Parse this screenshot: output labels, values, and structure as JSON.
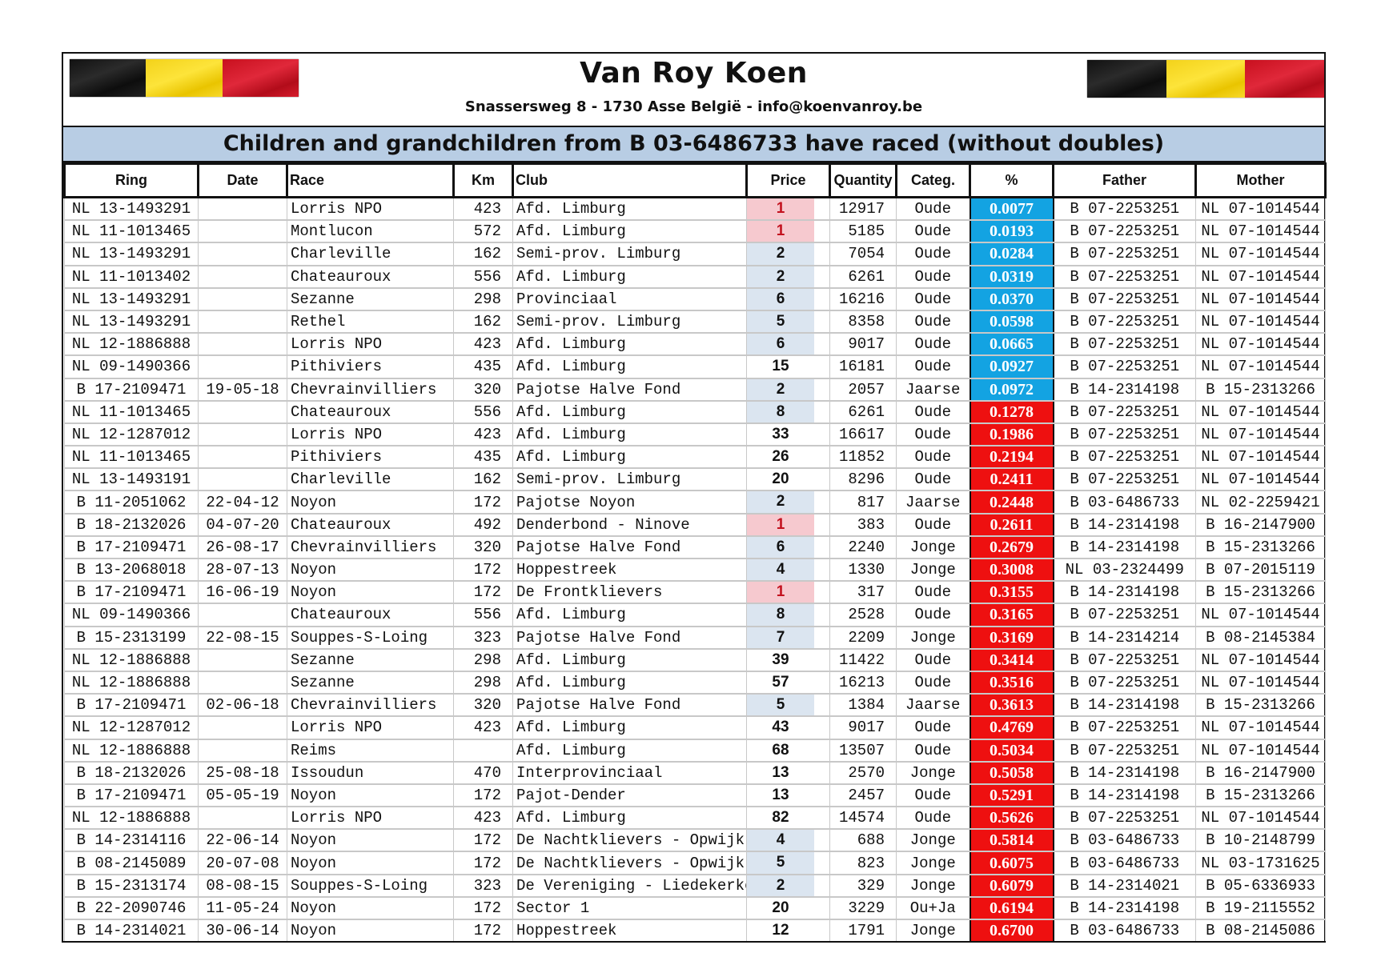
{
  "header": {
    "title": "Van Roy Koen",
    "subtitle": "Snassersweg 8 - 1730 Asse België - info@koenvanroy.be",
    "banner": "Children and grandchildren from B 03-6486733 have raced (without doubles)"
  },
  "colors": {
    "banner_bg": "#b8cde4",
    "pct_below_0_1": "#13a3e2",
    "pct_above_0_1": "#ee1010",
    "price_first": "#f6c9cf",
    "price_top": "#dbe5f0"
  },
  "columns": [
    "Ring",
    "Date",
    "Race",
    "Km",
    "Club",
    "Price",
    "Quantity",
    "Categ.",
    "%",
    "Father",
    "Mother"
  ],
  "rows": [
    [
      "NL 13-1493291",
      "",
      "Lorris NPO",
      "423",
      "Afd. Limburg",
      "1",
      "12917",
      "Oude",
      "0.0077",
      "B 07-2253251",
      "NL 07-1014544"
    ],
    [
      "NL 11-1013465",
      "",
      "Montlucon",
      "572",
      "Afd. Limburg",
      "1",
      "5185",
      "Oude",
      "0.0193",
      "B 07-2253251",
      "NL 07-1014544"
    ],
    [
      "NL 13-1493291",
      "",
      "Charleville",
      "162",
      "Semi-prov. Limburg",
      "2",
      "7054",
      "Oude",
      "0.0284",
      "B 07-2253251",
      "NL 07-1014544"
    ],
    [
      "NL 11-1013402",
      "",
      "Chateauroux",
      "556",
      "Afd. Limburg",
      "2",
      "6261",
      "Oude",
      "0.0319",
      "B 07-2253251",
      "NL 07-1014544"
    ],
    [
      "NL 13-1493291",
      "",
      "Sezanne",
      "298",
      "Provinciaal",
      "6",
      "16216",
      "Oude",
      "0.0370",
      "B 07-2253251",
      "NL 07-1014544"
    ],
    [
      "NL 13-1493291",
      "",
      "Rethel",
      "162",
      "Semi-prov. Limburg",
      "5",
      "8358",
      "Oude",
      "0.0598",
      "B 07-2253251",
      "NL 07-1014544"
    ],
    [
      "NL 12-1886888",
      "",
      "Lorris NPO",
      "423",
      "Afd. Limburg",
      "6",
      "9017",
      "Oude",
      "0.0665",
      "B 07-2253251",
      "NL 07-1014544"
    ],
    [
      "NL 09-1490366",
      "",
      "Pithiviers",
      "435",
      "Afd. Limburg",
      "15",
      "16181",
      "Oude",
      "0.0927",
      "B 07-2253251",
      "NL 07-1014544"
    ],
    [
      "B 17-2109471",
      "19-05-18",
      "Chevrainvilliers",
      "320",
      "Pajotse Halve Fond",
      "2",
      "2057",
      "Jaarse",
      "0.0972",
      "B 14-2314198",
      "B 15-2313266"
    ],
    [
      "NL 11-1013465",
      "",
      "Chateauroux",
      "556",
      "Afd. Limburg",
      "8",
      "6261",
      "Oude",
      "0.1278",
      "B 07-2253251",
      "NL 07-1014544"
    ],
    [
      "NL 12-1287012",
      "",
      "Lorris NPO",
      "423",
      "Afd. Limburg",
      "33",
      "16617",
      "Oude",
      "0.1986",
      "B 07-2253251",
      "NL 07-1014544"
    ],
    [
      "NL 11-1013465",
      "",
      "Pithiviers",
      "435",
      "Afd. Limburg",
      "26",
      "11852",
      "Oude",
      "0.2194",
      "B 07-2253251",
      "NL 07-1014544"
    ],
    [
      "NL 13-1493191",
      "",
      "Charleville",
      "162",
      "Semi-prov. Limburg",
      "20",
      "8296",
      "Oude",
      "0.2411",
      "B 07-2253251",
      "NL 07-1014544"
    ],
    [
      "B 11-2051062",
      "22-04-12",
      "Noyon",
      "172",
      "Pajotse Noyon",
      "2",
      "817",
      "Jaarse",
      "0.2448",
      "B 03-6486733",
      "NL 02-2259421"
    ],
    [
      "B 18-2132026",
      "04-07-20",
      "Chateauroux",
      "492",
      "Denderbond - Ninove",
      "1",
      "383",
      "Oude",
      "0.2611",
      "B 14-2314198",
      "B 16-2147900"
    ],
    [
      "B 17-2109471",
      "26-08-17",
      "Chevrainvilliers",
      "320",
      "Pajotse Halve Fond",
      "6",
      "2240",
      "Jonge",
      "0.2679",
      "B 14-2314198",
      "B 15-2313266"
    ],
    [
      "B 13-2068018",
      "28-07-13",
      "Noyon",
      "172",
      "Hoppestreek",
      "4",
      "1330",
      "Jonge",
      "0.3008",
      "NL 03-2324499",
      "B 07-2015119"
    ],
    [
      "B 17-2109471",
      "16-06-19",
      "Noyon",
      "172",
      "De Frontklievers",
      "1",
      "317",
      "Oude",
      "0.3155",
      "B 14-2314198",
      "B 15-2313266"
    ],
    [
      "NL 09-1490366",
      "",
      "Chateauroux",
      "556",
      "Afd. Limburg",
      "8",
      "2528",
      "Oude",
      "0.3165",
      "B 07-2253251",
      "NL 07-1014544"
    ],
    [
      "B 15-2313199",
      "22-08-15",
      "Souppes-S-Loing",
      "323",
      "Pajotse Halve Fond",
      "7",
      "2209",
      "Jonge",
      "0.3169",
      "B 14-2314214",
      "B 08-2145384"
    ],
    [
      "NL 12-1886888",
      "",
      "Sezanne",
      "298",
      "Afd. Limburg",
      "39",
      "11422",
      "Oude",
      "0.3414",
      "B 07-2253251",
      "NL 07-1014544"
    ],
    [
      "NL 12-1886888",
      "",
      "Sezanne",
      "298",
      "Afd. Limburg",
      "57",
      "16213",
      "Oude",
      "0.3516",
      "B 07-2253251",
      "NL 07-1014544"
    ],
    [
      "B 17-2109471",
      "02-06-18",
      "Chevrainvilliers",
      "320",
      "Pajotse Halve Fond",
      "5",
      "1384",
      "Jaarse",
      "0.3613",
      "B 14-2314198",
      "B 15-2313266"
    ],
    [
      "NL 12-1287012",
      "",
      "Lorris NPO",
      "423",
      "Afd. Limburg",
      "43",
      "9017",
      "Oude",
      "0.4769",
      "B 07-2253251",
      "NL 07-1014544"
    ],
    [
      "NL 12-1886888",
      "",
      "Reims",
      "",
      "Afd. Limburg",
      "68",
      "13507",
      "Oude",
      "0.5034",
      "B 07-2253251",
      "NL 07-1014544"
    ],
    [
      "B 18-2132026",
      "25-08-18",
      "Issoudun",
      "470",
      "Interprovinciaal",
      "13",
      "2570",
      "Jonge",
      "0.5058",
      "B 14-2314198",
      "B 16-2147900"
    ],
    [
      "B 17-2109471",
      "05-05-19",
      "Noyon",
      "172",
      "Pajot-Dender",
      "13",
      "2457",
      "Oude",
      "0.5291",
      "B 14-2314198",
      "B 15-2313266"
    ],
    [
      "NL 12-1886888",
      "",
      "Lorris NPO",
      "423",
      "Afd. Limburg",
      "82",
      "14574",
      "Oude",
      "0.5626",
      "B 07-2253251",
      "NL 07-1014544"
    ],
    [
      "B 14-2314116",
      "22-06-14",
      "Noyon",
      "172",
      "De Nachtklievers - Opwijk",
      "4",
      "688",
      "Jonge",
      "0.5814",
      "B 03-6486733",
      "B 10-2148799"
    ],
    [
      "B 08-2145089",
      "20-07-08",
      "Noyon",
      "172",
      "De Nachtklievers - Opwijk",
      "5",
      "823",
      "Jonge",
      "0.6075",
      "B 03-6486733",
      "NL 03-1731625"
    ],
    [
      "B 15-2313174",
      "08-08-15",
      "Souppes-S-Loing",
      "323",
      "De Vereniging - Liedekerke",
      "2",
      "329",
      "Jonge",
      "0.6079",
      "B 14-2314021",
      "B 05-6336933"
    ],
    [
      "B 22-2090746",
      "11-05-24",
      "Noyon",
      "172",
      "Sector 1",
      "20",
      "3229",
      "Ou+Ja",
      "0.6194",
      "B 14-2314198",
      "B 19-2115552"
    ],
    [
      "B 14-2314021",
      "30-06-14",
      "Noyon",
      "172",
      "Hoppestreek",
      "12",
      "1791",
      "Jonge",
      "0.6700",
      "B 03-6486733",
      "B 08-2145086"
    ]
  ]
}
